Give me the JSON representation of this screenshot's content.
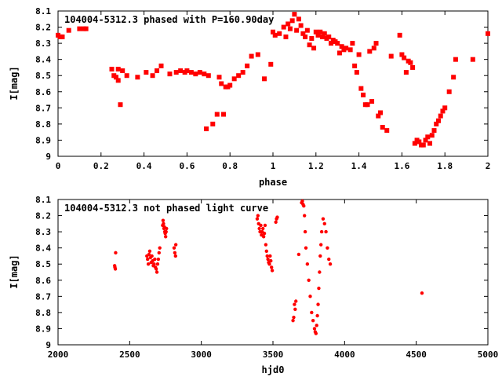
{
  "chart_data": [
    {
      "type": "scatter",
      "title": "104004-5312.3 phased with P=160.90day",
      "xlabel": "phase",
      "ylabel": "I[mag]",
      "xlim": [
        0,
        2
      ],
      "ylim": [
        9,
        8.1
      ],
      "y_inverted": true,
      "xticks": [
        "0",
        "0.2",
        "0.4",
        "0.6",
        "0.8",
        "1",
        "1.2",
        "1.4",
        "1.6",
        "1.8",
        "2"
      ],
      "yticks": [
        "8.1",
        "8.2",
        "8.3",
        "8.4",
        "8.5",
        "8.6",
        "8.7",
        "8.8",
        "8.9",
        "9"
      ],
      "grid": false,
      "marker": "filled-square",
      "color": "#ff0000",
      "series": [
        {
          "x": [
            0.0,
            0.01,
            0.02,
            0.05,
            0.1,
            0.12,
            0.13,
            0.25,
            0.26,
            0.27,
            0.28,
            0.28,
            0.29,
            0.3,
            0.32,
            0.37,
            0.41,
            0.44,
            0.46,
            0.48,
            0.52,
            0.55,
            0.57,
            0.59,
            0.6,
            0.62,
            0.64,
            0.66,
            0.68,
            0.69,
            0.7,
            0.72,
            0.74,
            0.75,
            0.76,
            0.77,
            0.78,
            0.79,
            0.8,
            0.82,
            0.84,
            0.86,
            0.88,
            0.9,
            0.93,
            0.96,
            0.99,
            1.0,
            1.01,
            1.03,
            1.05,
            1.06,
            1.07,
            1.08,
            1.09,
            1.1,
            1.11,
            1.12,
            1.13,
            1.14,
            1.15,
            1.16,
            1.17,
            1.18,
            1.19,
            1.2,
            1.21,
            1.22,
            1.23,
            1.24,
            1.25,
            1.26,
            1.27,
            1.28,
            1.29,
            1.3,
            1.31,
            1.32,
            1.33,
            1.34,
            1.36,
            1.37,
            1.38,
            1.39,
            1.4,
            1.41,
            1.42,
            1.43,
            1.44,
            1.45,
            1.46,
            1.47,
            1.48,
            1.49,
            1.5,
            1.51,
            1.53,
            1.55,
            1.59,
            1.6,
            1.61,
            1.62,
            1.63,
            1.64,
            1.65,
            1.66,
            1.67,
            1.68,
            1.69,
            1.7,
            1.71,
            1.72,
            1.73,
            1.74,
            1.75,
            1.76,
            1.77,
            1.78,
            1.79,
            1.8,
            1.82,
            1.84,
            1.85,
            1.93,
            2.0
          ],
          "y": [
            8.25,
            8.26,
            8.26,
            8.22,
            8.21,
            8.21,
            8.21,
            8.46,
            8.5,
            8.51,
            8.46,
            8.53,
            8.68,
            8.47,
            8.5,
            8.51,
            8.48,
            8.5,
            8.47,
            8.44,
            8.49,
            8.48,
            8.47,
            8.48,
            8.47,
            8.48,
            8.49,
            8.48,
            8.49,
            8.83,
            8.5,
            8.8,
            8.74,
            8.51,
            8.55,
            8.74,
            8.57,
            8.57,
            8.56,
            8.52,
            8.5,
            8.48,
            8.44,
            8.38,
            8.37,
            8.52,
            8.43,
            8.23,
            8.25,
            8.24,
            8.2,
            8.26,
            8.18,
            8.21,
            8.16,
            8.12,
            8.22,
            8.15,
            8.19,
            8.24,
            8.26,
            8.22,
            8.31,
            8.27,
            8.33,
            8.23,
            8.25,
            8.23,
            8.26,
            8.24,
            8.27,
            8.26,
            8.3,
            8.28,
            8.29,
            8.3,
            8.36,
            8.32,
            8.34,
            8.33,
            8.34,
            8.3,
            8.44,
            8.48,
            8.37,
            8.58,
            8.62,
            8.68,
            8.68,
            8.35,
            8.66,
            8.33,
            8.3,
            8.75,
            8.73,
            8.82,
            8.84,
            8.38,
            8.25,
            8.37,
            8.39,
            8.48,
            8.41,
            8.42,
            8.45,
            8.92,
            8.9,
            8.91,
            8.93,
            8.93,
            8.9,
            8.88,
            8.92,
            8.87,
            8.84,
            8.8,
            8.78,
            8.75,
            8.72,
            8.7,
            8.6,
            8.51,
            8.4,
            8.4,
            8.24
          ]
        }
      ]
    },
    {
      "type": "scatter",
      "title": "104004-5312.3 not phased light curve",
      "xlabel": "hjd0",
      "ylabel": "I[mag]",
      "xlim": [
        2000,
        5000
      ],
      "ylim": [
        9,
        8.1
      ],
      "y_inverted": true,
      "xticks": [
        "2000",
        "2500",
        "3000",
        "3500",
        "4000",
        "4500",
        "5000"
      ],
      "yticks": [
        "8.1",
        "8.2",
        "8.3",
        "8.4",
        "8.5",
        "8.6",
        "8.7",
        "8.8",
        "8.9",
        "9"
      ],
      "grid": false,
      "marker": "filled-circle",
      "color": "#ff0000",
      "series": [
        {
          "x": [
            2395,
            2397,
            2400,
            2402,
            2620,
            2625,
            2630,
            2635,
            2640,
            2645,
            2650,
            2655,
            2660,
            2665,
            2670,
            2675,
            2680,
            2685,
            2690,
            2695,
            2700,
            2705,
            2710,
            2730,
            2733,
            2736,
            2739,
            2742,
            2745,
            2748,
            2751,
            2754,
            2757,
            2810,
            2815,
            2820,
            2822,
            3390,
            3395,
            3400,
            3405,
            3410,
            3415,
            3420,
            3425,
            3430,
            3435,
            3440,
            3445,
            3450,
            3455,
            3460,
            3465,
            3470,
            3475,
            3480,
            3485,
            3490,
            3495,
            3520,
            3525,
            3530,
            3640,
            3645,
            3650,
            3655,
            3660,
            3680,
            3700,
            3705,
            3710,
            3715,
            3720,
            3725,
            3730,
            3740,
            3750,
            3760,
            3770,
            3780,
            3790,
            3795,
            3800,
            3805,
            3810,
            3815,
            3820,
            3825,
            3830,
            3835,
            3840,
            3850,
            3860,
            3870,
            3880,
            3890,
            3900,
            4540
          ],
          "y": [
            8.51,
            8.52,
            8.53,
            8.43,
            8.45,
            8.47,
            8.5,
            8.44,
            8.42,
            8.46,
            8.49,
            8.45,
            8.48,
            8.51,
            8.5,
            8.47,
            8.52,
            8.53,
            8.55,
            8.5,
            8.47,
            8.43,
            8.4,
            8.26,
            8.23,
            8.25,
            8.28,
            8.27,
            8.3,
            8.31,
            8.33,
            8.3,
            8.28,
            8.4,
            8.43,
            8.45,
            8.38,
            8.22,
            8.2,
            8.25,
            8.28,
            8.3,
            8.26,
            8.32,
            8.3,
            8.28,
            8.33,
            8.31,
            8.26,
            8.38,
            8.42,
            8.45,
            8.47,
            8.49,
            8.5,
            8.45,
            8.48,
            8.52,
            8.54,
            8.24,
            8.22,
            8.21,
            8.85,
            8.83,
            8.75,
            8.78,
            8.73,
            8.44,
            8.12,
            8.11,
            8.13,
            8.14,
            8.2,
            8.3,
            8.4,
            8.5,
            8.6,
            8.7,
            8.8,
            8.85,
            8.9,
            8.92,
            8.93,
            8.88,
            8.82,
            8.75,
            8.65,
            8.55,
            8.45,
            8.38,
            8.3,
            8.22,
            8.25,
            8.3,
            8.4,
            8.47,
            8.5,
            8.68
          ]
        }
      ]
    }
  ]
}
